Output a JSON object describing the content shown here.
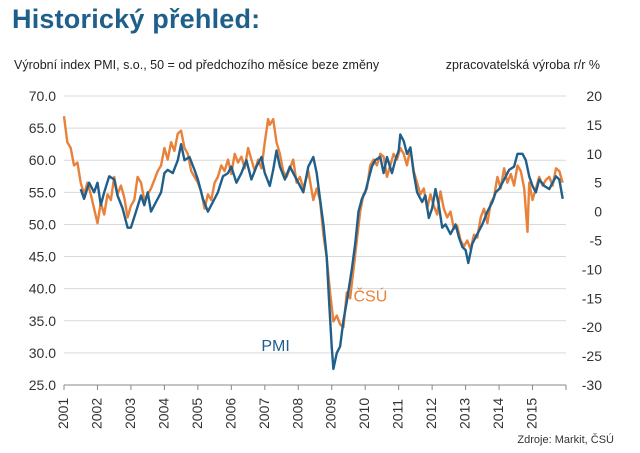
{
  "title": "Historický přehled:",
  "chart_data": {
    "type": "line",
    "subtitle_left": "Výrobní index PMI, s.o., 50 = od předchozího měsíce beze změny",
    "subtitle_right": "zpracovatelská výroba r/r %",
    "left_axis": {
      "range": [
        25.0,
        70.0
      ],
      "ticks": [
        "25.0",
        "30.0",
        "35.0",
        "40.0",
        "45.0",
        "50.0",
        "55.0",
        "60.0",
        "65.0",
        "70.0"
      ],
      "label": "PMI"
    },
    "right_axis": {
      "range": [
        -30,
        20
      ],
      "ticks": [
        "-30",
        "-25",
        "-20",
        "-15",
        "-10",
        "-5",
        "0",
        "5",
        "10",
        "15",
        "20"
      ],
      "label": "zpracovatelská výroba r/r %"
    },
    "x_axis": {
      "range": [
        2001,
        2016
      ],
      "ticks": [
        "2001",
        "2002",
        "2003",
        "2004",
        "2005",
        "2006",
        "2007",
        "2008",
        "2009",
        "2010",
        "2011",
        "2012",
        "2013",
        "2014",
        "2015"
      ]
    },
    "series": [
      {
        "name": "PMI",
        "axis": "left",
        "color": "#1f5f8b",
        "label_text": "PMI",
        "points": [
          [
            2001.5,
            55.5
          ],
          [
            2001.6,
            54.0
          ],
          [
            2001.75,
            56.5
          ],
          [
            2001.9,
            55.0
          ],
          [
            2002.0,
            56.5
          ],
          [
            2002.1,
            53.0
          ],
          [
            2002.2,
            55.0
          ],
          [
            2002.35,
            57.5
          ],
          [
            2002.5,
            57.0
          ],
          [
            2002.6,
            54.5
          ],
          [
            2002.75,
            52.5
          ],
          [
            2002.9,
            49.5
          ],
          [
            2003.0,
            49.5
          ],
          [
            2003.15,
            52.0
          ],
          [
            2003.3,
            54.5
          ],
          [
            2003.4,
            53.0
          ],
          [
            2003.5,
            55.0
          ],
          [
            2003.6,
            52.0
          ],
          [
            2003.75,
            53.5
          ],
          [
            2003.9,
            55.0
          ],
          [
            2004.0,
            58.0
          ],
          [
            2004.1,
            58.5
          ],
          [
            2004.25,
            58.0
          ],
          [
            2004.4,
            60.0
          ],
          [
            2004.5,
            62.5
          ],
          [
            2004.6,
            60.0
          ],
          [
            2004.75,
            60.5
          ],
          [
            2004.9,
            58.5
          ],
          [
            2005.0,
            57.0
          ],
          [
            2005.15,
            54.0
          ],
          [
            2005.3,
            52.0
          ],
          [
            2005.45,
            53.5
          ],
          [
            2005.6,
            55.0
          ],
          [
            2005.75,
            57.5
          ],
          [
            2005.9,
            58.0
          ],
          [
            2006.0,
            59.0
          ],
          [
            2006.15,
            56.5
          ],
          [
            2006.3,
            58.0
          ],
          [
            2006.45,
            60.0
          ],
          [
            2006.6,
            57.0
          ],
          [
            2006.75,
            59.0
          ],
          [
            2006.9,
            60.5
          ],
          [
            2007.0,
            58.0
          ],
          [
            2007.15,
            56.0
          ],
          [
            2007.25,
            58.5
          ],
          [
            2007.35,
            61.5
          ],
          [
            2007.45,
            59.0
          ],
          [
            2007.6,
            57.0
          ],
          [
            2007.75,
            59.0
          ],
          [
            2007.9,
            57.5
          ],
          [
            2008.0,
            56.5
          ],
          [
            2008.15,
            55.0
          ],
          [
            2008.3,
            59.0
          ],
          [
            2008.45,
            60.5
          ],
          [
            2008.55,
            58.0
          ],
          [
            2008.65,
            54.0
          ],
          [
            2008.75,
            50.0
          ],
          [
            2008.85,
            45.0
          ],
          [
            2008.92,
            38.0
          ],
          [
            2009.0,
            31.0
          ],
          [
            2009.05,
            27.5
          ],
          [
            2009.15,
            30.0
          ],
          [
            2009.25,
            31.0
          ],
          [
            2009.35,
            35.0
          ],
          [
            2009.45,
            38.0
          ],
          [
            2009.6,
            43.0
          ],
          [
            2009.7,
            47.0
          ],
          [
            2009.8,
            52.0
          ],
          [
            2009.9,
            54.0
          ],
          [
            2010.0,
            55.0
          ],
          [
            2010.1,
            57.0
          ],
          [
            2010.2,
            59.0
          ],
          [
            2010.3,
            60.0
          ],
          [
            2010.45,
            60.5
          ],
          [
            2010.55,
            58.0
          ],
          [
            2010.65,
            60.5
          ],
          [
            2010.8,
            58.0
          ],
          [
            2010.9,
            60.0
          ],
          [
            2011.0,
            61.5
          ],
          [
            2011.05,
            64.0
          ],
          [
            2011.15,
            63.0
          ],
          [
            2011.25,
            61.0
          ],
          [
            2011.35,
            62.0
          ],
          [
            2011.45,
            58.0
          ],
          [
            2011.55,
            55.0
          ],
          [
            2011.7,
            53.5
          ],
          [
            2011.8,
            54.5
          ],
          [
            2011.9,
            51.0
          ],
          [
            2012.0,
            52.5
          ],
          [
            2012.1,
            55.5
          ],
          [
            2012.2,
            53.0
          ],
          [
            2012.3,
            49.5
          ],
          [
            2012.4,
            50.0
          ],
          [
            2012.55,
            48.5
          ],
          [
            2012.7,
            50.0
          ],
          [
            2012.8,
            48.0
          ],
          [
            2012.9,
            46.5
          ],
          [
            2013.0,
            46.0
          ],
          [
            2013.08,
            44.0
          ],
          [
            2013.2,
            47.0
          ],
          [
            2013.35,
            48.5
          ],
          [
            2013.5,
            50.0
          ],
          [
            2013.65,
            52.0
          ],
          [
            2013.8,
            53.5
          ],
          [
            2013.9,
            55.0
          ],
          [
            2014.0,
            55.5
          ],
          [
            2014.15,
            57.0
          ],
          [
            2014.3,
            58.5
          ],
          [
            2014.45,
            59.0
          ],
          [
            2014.55,
            61.0
          ],
          [
            2014.7,
            61.0
          ],
          [
            2014.8,
            60.0
          ],
          [
            2014.9,
            57.5
          ],
          [
            2015.0,
            56.0
          ],
          [
            2015.1,
            55.0
          ],
          [
            2015.2,
            57.0
          ],
          [
            2015.35,
            56.0
          ],
          [
            2015.5,
            55.5
          ],
          [
            2015.6,
            56.5
          ],
          [
            2015.7,
            57.5
          ],
          [
            2015.8,
            57.0
          ],
          [
            2015.9,
            54.0
          ]
        ]
      },
      {
        "name": "ČSÚ",
        "axis": "right",
        "color": "#e8813a",
        "label_text": "ČSÚ",
        "points": [
          [
            2001.0,
            16.5
          ],
          [
            2001.1,
            12.0
          ],
          [
            2001.2,
            11.0
          ],
          [
            2001.3,
            8.0
          ],
          [
            2001.4,
            8.5
          ],
          [
            2001.5,
            5.0
          ],
          [
            2001.6,
            3.0
          ],
          [
            2001.7,
            5.0
          ],
          [
            2001.8,
            3.0
          ],
          [
            2001.9,
            0.5
          ],
          [
            2002.0,
            -2.0
          ],
          [
            2002.1,
            1.5
          ],
          [
            2002.2,
            -0.5
          ],
          [
            2002.3,
            3.0
          ],
          [
            2002.4,
            2.0
          ],
          [
            2002.5,
            6.0
          ],
          [
            2002.6,
            3.0
          ],
          [
            2002.7,
            4.5
          ],
          [
            2002.8,
            2.5
          ],
          [
            2002.9,
            -1.0
          ],
          [
            2003.0,
            1.0
          ],
          [
            2003.1,
            2.0
          ],
          [
            2003.2,
            6.0
          ],
          [
            2003.3,
            5.0
          ],
          [
            2003.4,
            2.0
          ],
          [
            2003.5,
            3.0
          ],
          [
            2003.6,
            4.0
          ],
          [
            2003.7,
            5.5
          ],
          [
            2003.8,
            7.0
          ],
          [
            2003.9,
            8.0
          ],
          [
            2004.0,
            11.0
          ],
          [
            2004.1,
            9.0
          ],
          [
            2004.2,
            12.0
          ],
          [
            2004.3,
            10.5
          ],
          [
            2004.4,
            13.5
          ],
          [
            2004.5,
            14.0
          ],
          [
            2004.6,
            11.0
          ],
          [
            2004.7,
            10.0
          ],
          [
            2004.8,
            7.0
          ],
          [
            2004.9,
            6.0
          ],
          [
            2005.0,
            5.0
          ],
          [
            2005.1,
            3.5
          ],
          [
            2005.2,
            0.5
          ],
          [
            2005.3,
            3.0
          ],
          [
            2005.4,
            2.0
          ],
          [
            2005.5,
            5.0
          ],
          [
            2005.6,
            6.0
          ],
          [
            2005.7,
            8.0
          ],
          [
            2005.8,
            7.0
          ],
          [
            2005.9,
            9.0
          ],
          [
            2006.0,
            6.5
          ],
          [
            2006.1,
            10.0
          ],
          [
            2006.2,
            8.5
          ],
          [
            2006.3,
            9.5
          ],
          [
            2006.4,
            7.5
          ],
          [
            2006.5,
            11.0
          ],
          [
            2006.6,
            9.0
          ],
          [
            2006.7,
            7.0
          ],
          [
            2006.8,
            9.0
          ],
          [
            2006.9,
            7.5
          ],
          [
            2007.0,
            12.0
          ],
          [
            2007.1,
            16.0
          ],
          [
            2007.15,
            15.0
          ],
          [
            2007.25,
            16.0
          ],
          [
            2007.35,
            12.0
          ],
          [
            2007.45,
            10.0
          ],
          [
            2007.55,
            7.0
          ],
          [
            2007.65,
            6.0
          ],
          [
            2007.75,
            7.5
          ],
          [
            2007.85,
            9.0
          ],
          [
            2007.95,
            5.0
          ],
          [
            2008.05,
            6.0
          ],
          [
            2008.15,
            4.0
          ],
          [
            2008.3,
            7.0
          ],
          [
            2008.45,
            2.0
          ],
          [
            2008.55,
            4.0
          ],
          [
            2008.65,
            2.0
          ],
          [
            2008.75,
            -4.0
          ],
          [
            2008.85,
            -8.0
          ],
          [
            2008.95,
            -14.0
          ],
          [
            2009.05,
            -19.0
          ],
          [
            2009.15,
            -18.0
          ],
          [
            2009.25,
            -19.5
          ],
          [
            2009.35,
            -20.0
          ],
          [
            2009.45,
            -14.0
          ],
          [
            2009.55,
            -15.0
          ],
          [
            2009.65,
            -10.0
          ],
          [
            2009.75,
            -5.0
          ],
          [
            2009.85,
            0.0
          ],
          [
            2009.95,
            3.0
          ],
          [
            2010.05,
            4.0
          ],
          [
            2010.15,
            8.0
          ],
          [
            2010.25,
            9.0
          ],
          [
            2010.35,
            8.0
          ],
          [
            2010.45,
            10.0
          ],
          [
            2010.55,
            9.5
          ],
          [
            2010.65,
            6.0
          ],
          [
            2010.75,
            8.0
          ],
          [
            2010.85,
            10.0
          ],
          [
            2010.95,
            9.0
          ],
          [
            2011.05,
            11.0
          ],
          [
            2011.15,
            10.0
          ],
          [
            2011.25,
            8.0
          ],
          [
            2011.35,
            11.0
          ],
          [
            2011.45,
            7.0
          ],
          [
            2011.55,
            5.0
          ],
          [
            2011.65,
            3.0
          ],
          [
            2011.75,
            4.0
          ],
          [
            2011.85,
            0.5
          ],
          [
            2011.95,
            3.0
          ],
          [
            2012.05,
            1.0
          ],
          [
            2012.15,
            -0.5
          ],
          [
            2012.25,
            3.5
          ],
          [
            2012.35,
            0.5
          ],
          [
            2012.45,
            -1.0
          ],
          [
            2012.55,
            0.0
          ],
          [
            2012.65,
            -3.0
          ],
          [
            2012.75,
            -2.5
          ],
          [
            2012.85,
            -5.0
          ],
          [
            2012.95,
            -6.0
          ],
          [
            2013.05,
            -5.0
          ],
          [
            2013.15,
            -6.5
          ],
          [
            2013.25,
            -4.0
          ],
          [
            2013.35,
            -4.5
          ],
          [
            2013.45,
            -1.0
          ],
          [
            2013.55,
            0.5
          ],
          [
            2013.65,
            -2.0
          ],
          [
            2013.75,
            1.5
          ],
          [
            2013.85,
            2.5
          ],
          [
            2013.95,
            6.0
          ],
          [
            2014.05,
            4.0
          ],
          [
            2014.15,
            7.5
          ],
          [
            2014.25,
            5.0
          ],
          [
            2014.35,
            6.5
          ],
          [
            2014.45,
            4.5
          ],
          [
            2014.55,
            8.0
          ],
          [
            2014.65,
            7.0
          ],
          [
            2014.75,
            4.0
          ],
          [
            2014.85,
            -3.5
          ],
          [
            2014.9,
            5.0
          ],
          [
            2015.0,
            2.0
          ],
          [
            2015.1,
            4.0
          ],
          [
            2015.2,
            6.0
          ],
          [
            2015.3,
            4.5
          ],
          [
            2015.4,
            5.5
          ],
          [
            2015.5,
            6.0
          ],
          [
            2015.6,
            4.5
          ],
          [
            2015.7,
            7.5
          ],
          [
            2015.8,
            7.0
          ],
          [
            2015.9,
            5.0
          ]
        ]
      }
    ],
    "source": "Zdroje: Markit, ČSÚ"
  }
}
